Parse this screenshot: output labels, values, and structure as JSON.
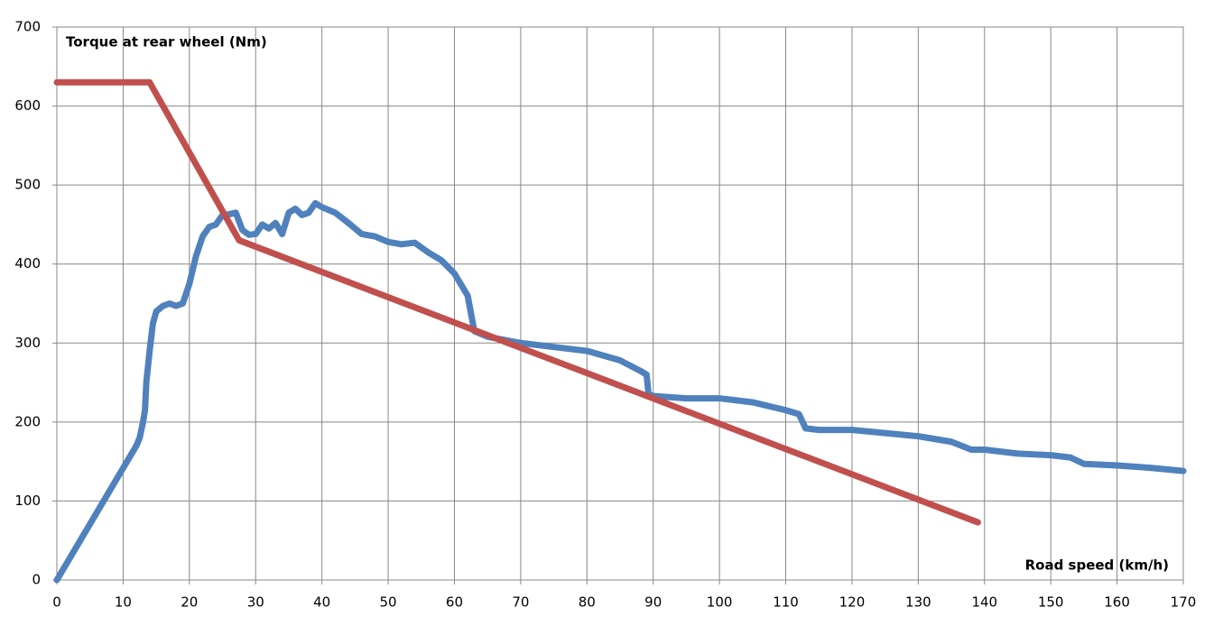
{
  "chart_data": {
    "type": "line",
    "y_label": "Torque at rear wheel (Nm)",
    "x_label": "Road speed (km/h)",
    "xlim": [
      0,
      170
    ],
    "xticks": [
      0,
      10,
      20,
      30,
      40,
      50,
      60,
      70,
      80,
      90,
      100,
      110,
      120,
      130,
      140,
      150,
      160,
      170
    ],
    "ylim": [
      0,
      700
    ],
    "yticks": [
      0,
      100,
      200,
      300,
      400,
      500,
      600,
      700
    ],
    "grid": true,
    "series": [
      {
        "color": "#4f81bd",
        "x": [
          0,
          12,
          12.5,
          13,
          13.3,
          13.5,
          14,
          14.5,
          15,
          16,
          17,
          18,
          19,
          20,
          21,
          22,
          23,
          24,
          25,
          26,
          27,
          28,
          29,
          30,
          31,
          32,
          33,
          34,
          35,
          36,
          37,
          38,
          39,
          40,
          42,
          44,
          46,
          48,
          50,
          52,
          54,
          56,
          58,
          60,
          62,
          63,
          65,
          70,
          75,
          80,
          85,
          88,
          89,
          89.3,
          90,
          95,
          100,
          105,
          110,
          112,
          113,
          115,
          120,
          125,
          130,
          135,
          138,
          140,
          145,
          150,
          153,
          155,
          160,
          165,
          170
        ],
        "values": [
          0,
          170,
          180,
          200,
          215,
          250,
          290,
          325,
          340,
          347,
          350,
          347,
          350,
          375,
          410,
          435,
          447,
          450,
          462,
          463,
          465,
          443,
          437,
          438,
          450,
          445,
          452,
          438,
          465,
          470,
          462,
          465,
          477,
          472,
          465,
          452,
          438,
          435,
          428,
          425,
          427,
          415,
          405,
          388,
          360,
          315,
          308,
          300,
          295,
          290,
          278,
          265,
          260,
          235,
          233,
          230,
          230,
          225,
          215,
          210,
          192,
          190,
          190,
          186,
          182,
          175,
          165,
          165,
          160,
          158,
          155,
          147,
          145,
          142,
          138
        ]
      },
      {
        "color": "#c0504d",
        "x": [
          0,
          14,
          27.5,
          139
        ],
        "values": [
          630,
          630,
          430,
          73
        ]
      }
    ]
  }
}
